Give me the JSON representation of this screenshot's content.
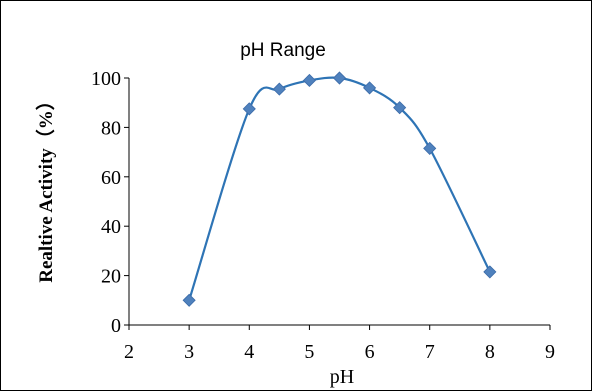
{
  "chart_data": {
    "type": "line",
    "title": "pH  Range",
    "xlabel": "pH",
    "ylabel": "Realtive Activity（%）",
    "xlim": [
      2,
      9
    ],
    "ylim": [
      0,
      100
    ],
    "xticks": [
      2,
      3,
      4,
      5,
      6,
      7,
      8,
      9
    ],
    "yticks": [
      0,
      20,
      40,
      60,
      80,
      100
    ],
    "grid": false,
    "legend": "none",
    "smooth": true,
    "series": [
      {
        "color": "#4f81bd",
        "line_color": "#2e74b5",
        "marker": "diamond",
        "x": [
          3,
          4,
          4.5,
          5,
          5.5,
          6,
          6.5,
          7,
          8
        ],
        "y": [
          10,
          87.5,
          95.5,
          99,
          100,
          96,
          88,
          71.5,
          21.5
        ]
      }
    ]
  }
}
